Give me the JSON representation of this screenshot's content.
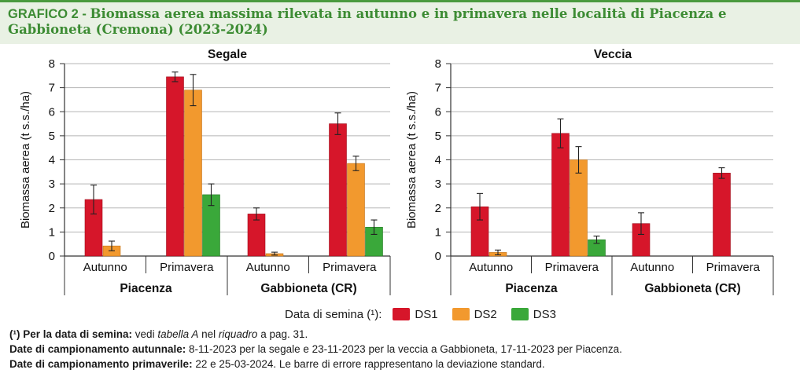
{
  "header": {
    "title_num": "GRAFICO 2 - ",
    "title_text": "Biomassa aerea massima rilevata in autunno e in primavera nelle località di Piacenza e Gabbioneta (Cremona) (2023-2024)"
  },
  "colors": {
    "DS1": "#d6162a",
    "DS2": "#f2992e",
    "DS3": "#3aa83a",
    "grid": "#b5b5b5",
    "header_bg": "#e9f1e4",
    "header_text": "#3d8c34"
  },
  "chart_data": [
    {
      "type": "bar",
      "title": "Segale",
      "ylabel": "Biomassa aerea (t s.s./ha)",
      "ylim": [
        0,
        8
      ],
      "yticks": [
        "0",
        "1",
        "2",
        "3",
        "4",
        "5",
        "6",
        "7",
        "8"
      ],
      "grid": true,
      "categories": [
        "Autunno",
        "Primavera",
        "Autunno",
        "Primavera"
      ],
      "groups": [
        "Piacenza",
        "Gabbioneta (CR)"
      ],
      "series": [
        {
          "name": "DS1",
          "values": [
            2.35,
            7.45,
            1.75,
            5.5
          ],
          "errors": [
            0.6,
            0.2,
            0.25,
            0.45
          ]
        },
        {
          "name": "DS2",
          "values": [
            0.42,
            6.9,
            0.1,
            3.85
          ],
          "errors": [
            0.2,
            0.65,
            0.06,
            0.3
          ]
        },
        {
          "name": "DS3",
          "values": [
            null,
            2.55,
            null,
            1.2
          ],
          "errors": [
            null,
            0.45,
            null,
            0.3
          ]
        }
      ]
    },
    {
      "type": "bar",
      "title": "Veccia",
      "ylabel": "Biomassa aerea (t s.s./ha)",
      "ylim": [
        0,
        8
      ],
      "yticks": [
        "0",
        "1",
        "2",
        "3",
        "4",
        "5",
        "6",
        "7",
        "8"
      ],
      "grid": true,
      "categories": [
        "Autunno",
        "Primavera",
        "Autunno",
        "Primavera"
      ],
      "groups": [
        "Piacenza",
        "Gabbioneta (CR)"
      ],
      "series": [
        {
          "name": "DS1",
          "values": [
            2.05,
            5.1,
            1.35,
            3.45
          ],
          "errors": [
            0.55,
            0.6,
            0.45,
            0.22
          ]
        },
        {
          "name": "DS2",
          "values": [
            0.15,
            4.0,
            null,
            null
          ],
          "errors": [
            0.1,
            0.55,
            null,
            null
          ]
        },
        {
          "name": "DS3",
          "values": [
            null,
            0.68,
            null,
            null
          ],
          "errors": [
            null,
            0.15,
            null,
            null
          ]
        }
      ]
    }
  ],
  "legend": {
    "title": "Data di semina (¹):",
    "items": [
      "DS1",
      "DS2",
      "DS3"
    ]
  },
  "notes": {
    "n1_b": "(¹) Per la data di semina:",
    "n1_a": " vedi ",
    "n1_i1": "tabella A",
    "n1_c": " nel ",
    "n1_i2": "riquadro",
    "n1_d": " a pag. 31.",
    "n2_b": "Date di campionamento autunnale:",
    "n2_t": " 8-11-2023 per la segale e 23-11-2023 per la veccia a Gabbioneta, 17-11-2023 per Piacenza.",
    "n3_b": "Date di campionamento primaverile:",
    "n3_t": " 22 e 25-03-2024. Le barre di errore rappresentano la deviazione standard."
  }
}
